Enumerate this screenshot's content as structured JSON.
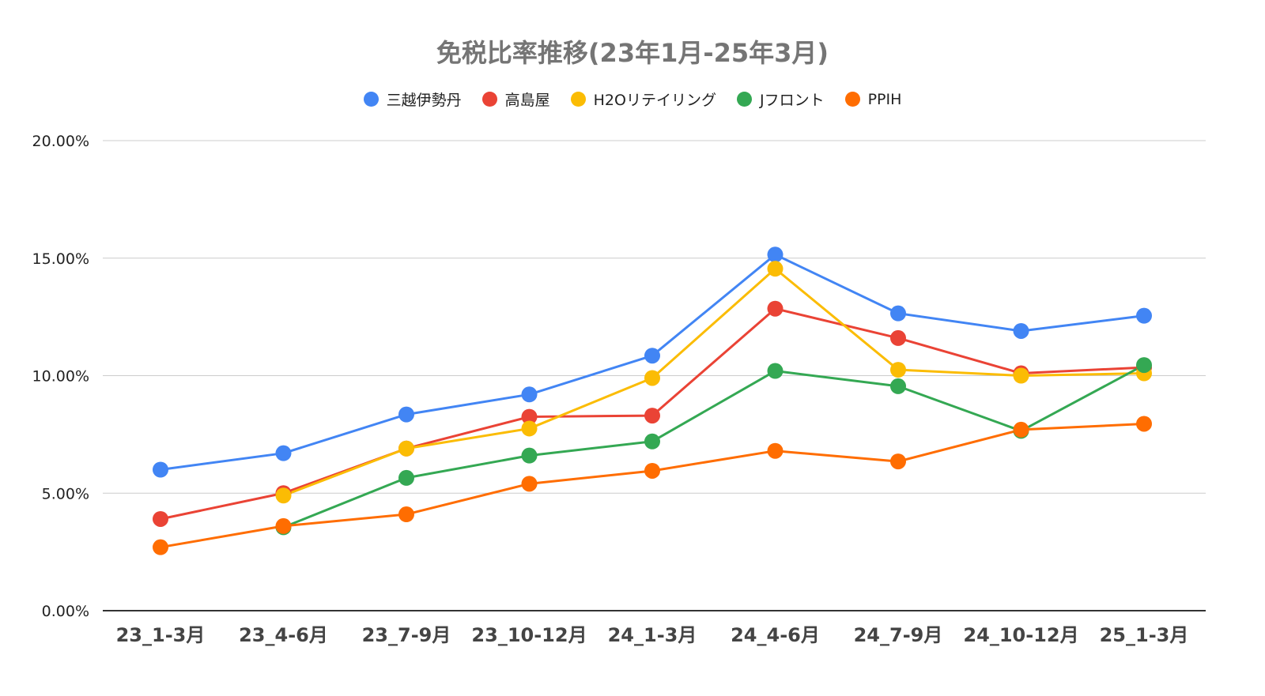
{
  "chart_data": {
    "type": "line",
    "title": "免税比率推移(23年1月-25年3月)",
    "xlabel": "",
    "ylabel": "",
    "categories": [
      "23_1-3月",
      "23_4-6月",
      "23_7-9月",
      "23_10-12月",
      "24_1-3月",
      "24_4-6月",
      "24_7-9月",
      "24_10-12月",
      "25_1-3月"
    ],
    "ylim": [
      0,
      20
    ],
    "yticks": [
      0,
      5,
      10,
      15,
      20
    ],
    "ytick_labels": [
      "0.00%",
      "5.00%",
      "10.00%",
      "15.00%",
      "20.00%"
    ],
    "grid": true,
    "legend_position": "top",
    "series": [
      {
        "name": "三越伊勢丹",
        "color": "#4285F4",
        "values": [
          6.0,
          6.7,
          8.35,
          9.2,
          10.85,
          15.15,
          12.65,
          11.9,
          12.55
        ]
      },
      {
        "name": "高島屋",
        "color": "#EA4335",
        "values": [
          3.9,
          5.0,
          6.9,
          8.25,
          8.3,
          12.85,
          11.6,
          10.1,
          10.35
        ]
      },
      {
        "name": "H2Oリテイリング",
        "color": "#FBBC04",
        "values": [
          null,
          4.9,
          6.9,
          7.75,
          9.9,
          14.55,
          10.25,
          10.0,
          10.1
        ]
      },
      {
        "name": "Jフロント",
        "color": "#34A853",
        "values": [
          null,
          3.55,
          5.65,
          6.6,
          7.2,
          10.2,
          9.55,
          7.65,
          10.45
        ]
      },
      {
        "name": "PPIH",
        "color": "#FF6D01",
        "values": [
          2.7,
          3.6,
          4.1,
          5.4,
          5.95,
          6.8,
          6.35,
          7.7,
          7.95
        ]
      }
    ]
  }
}
